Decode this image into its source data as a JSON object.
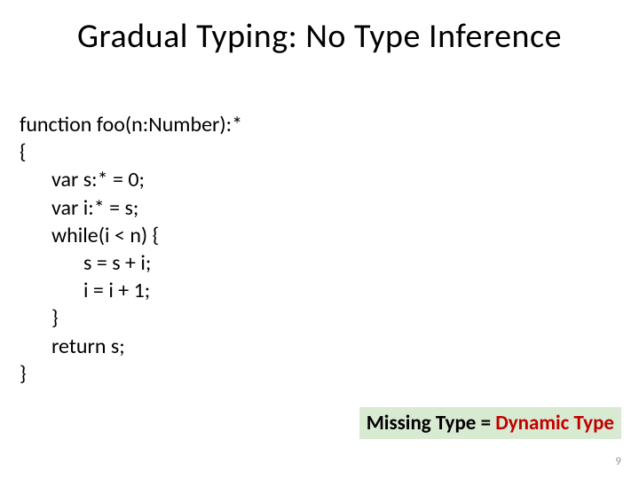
{
  "title": "Gradual Typing: No Type Inference",
  "code": {
    "line1": "function foo(n:Number):*",
    "line2": "{",
    "line3": "var s:* = 0;",
    "line4": "var i:* = s;",
    "line5": "while(i < n) {",
    "line6": "s = s + i;",
    "line7": "i = i + 1;",
    "line8": "}",
    "line9": "return s;",
    "line10": "}"
  },
  "callout": {
    "part1": "Missing Type = ",
    "part2": "Dynamic Type"
  },
  "page_number": "9",
  "colors": {
    "background": "#ffffff",
    "text": "#000000",
    "callout_bg": "#d8ead2",
    "callout_red": "#c00000",
    "page_num": "#999999"
  }
}
